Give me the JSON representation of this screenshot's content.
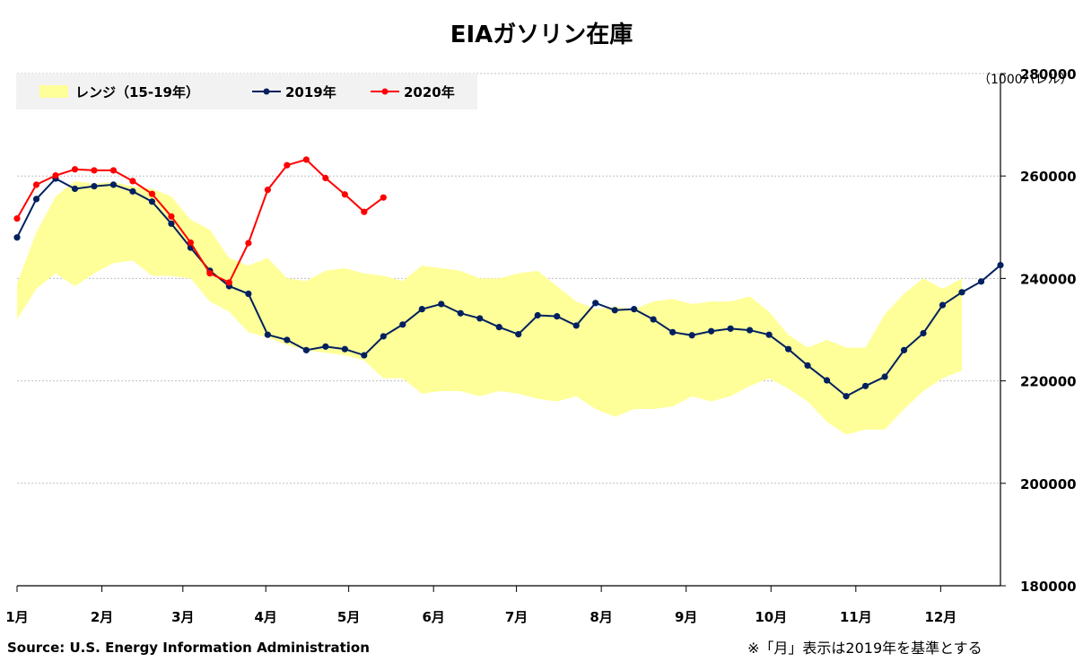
{
  "chart_data": {
    "type": "line",
    "title": "EIAガソリン在庫",
    "unit_label": "（1000バレル）",
    "source": "Source: U.S. Energy Information Administration",
    "note": "※「月」表示は2019年を基準とする",
    "x_tick_labels": [
      "1月",
      "2月",
      "3月",
      "4月",
      "5月",
      "6月",
      "7月",
      "8月",
      "9月",
      "10月",
      "11月",
      "12月"
    ],
    "y_tick_labels": [
      "180000",
      "200000",
      "220000",
      "240000",
      "260000",
      "280000"
    ],
    "ylim": [
      180000,
      280000
    ],
    "y_axis_side": "right",
    "grid": "horizontal dotted",
    "legend_position": "top-left",
    "range": {
      "name": "レンジ（15-19年）",
      "color": "#ffff99",
      "upper": [
        239000,
        249000,
        256000,
        259000,
        258500,
        258800,
        258000,
        257500,
        256000,
        251500,
        249500,
        244000,
        242500,
        244000,
        240000,
        239500,
        241500,
        242000,
        241000,
        240500,
        239500,
        242500,
        242000,
        241500,
        240000,
        240000,
        241000,
        241500,
        238500,
        235500,
        234000,
        234500,
        234000,
        235500,
        236000,
        235000,
        235500,
        235500,
        236500,
        233500,
        229000,
        226500,
        228000,
        226500,
        226500,
        233000,
        237000,
        240000,
        238000,
        240000
      ],
      "lower": [
        232000,
        238000,
        241000,
        238500,
        241000,
        243000,
        243500,
        240500,
        240500,
        240000,
        235500,
        233500,
        229500,
        228500,
        227000,
        226000,
        225500,
        225000,
        224000,
        220500,
        220500,
        217500,
        218000,
        218000,
        217000,
        218000,
        217500,
        216500,
        216000,
        217000,
        214500,
        213000,
        214500,
        214500,
        215000,
        217000,
        216000,
        217000,
        219000,
        220500,
        218500,
        216000,
        212000,
        209500,
        210500,
        210500,
        214500,
        218000,
        220500,
        222000
      ]
    },
    "series": [
      {
        "name": "2019年",
        "color": "#002060",
        "values": [
          248000,
          255500,
          259500,
          257500,
          258000,
          258300,
          257000,
          255000,
          250700,
          246000,
          241500,
          238500,
          237000,
          229000,
          228000,
          226000,
          226700,
          226200,
          225000,
          228700,
          231000,
          234000,
          235000,
          233200,
          232200,
          230500,
          229100,
          232800,
          232600,
          230800,
          235200,
          233800,
          234000,
          232000,
          229500,
          228900,
          229700,
          230200,
          229900,
          229000,
          226200,
          223000,
          220100,
          217000,
          219000,
          220800,
          226000,
          229300,
          234800,
          237300,
          239400,
          242600
        ]
      },
      {
        "name": "2020年",
        "color": "#ff0000",
        "values": [
          251700,
          258300,
          260100,
          261300,
          261100,
          261100,
          259000,
          256500,
          252100,
          247000,
          241000,
          239200,
          246900,
          257300,
          262100,
          263200,
          259600,
          256400,
          253000,
          255800
        ]
      }
    ]
  }
}
